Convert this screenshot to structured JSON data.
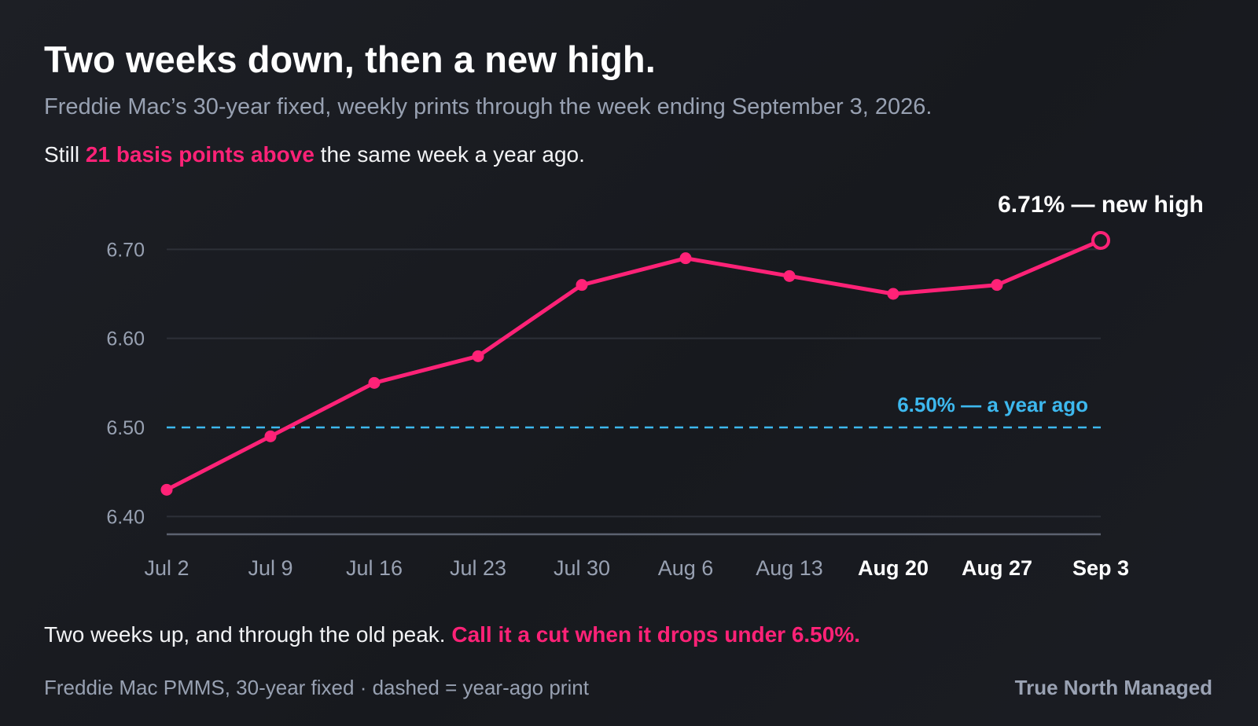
{
  "header": {
    "title": "Two weeks down, then a new high.",
    "subtitle": "Freddie Mac’s 30-year fixed, weekly prints through the week ending September 3, 2026.",
    "lede_prefix": "Still ",
    "lede_highlight": "21 basis points above",
    "lede_suffix": " the same week a year ago."
  },
  "footer": {
    "takeaway_prefix": "Two weeks up, and through the old peak. ",
    "takeaway_highlight": "Call it a cut when it drops under 6.50%.",
    "source": "Freddie Mac PMMS, 30-year fixed · dashed = year-ago print",
    "brand": "True North Managed"
  },
  "colors": {
    "series": "#ff2277",
    "reference": "#3db8ee",
    "grid": "#2d3038",
    "baseline": "#5c6270",
    "tick": "#98a1b2",
    "tick_bold": "#ffffff"
  },
  "chart_data": {
    "type": "line",
    "x": [
      "Jul 2",
      "Jul 9",
      "Jul 16",
      "Jul 23",
      "Jul 30",
      "Aug 6",
      "Aug 13",
      "Aug 20",
      "Aug 27",
      "Sep 3"
    ],
    "bold_ticks": [
      "Aug 20",
      "Aug 27",
      "Sep 3"
    ],
    "series": [
      {
        "values": [
          6.43,
          6.49,
          6.55,
          6.58,
          6.66,
          6.69,
          6.67,
          6.65,
          6.66,
          6.71
        ]
      }
    ],
    "yticks": [
      "6.40",
      "6.50",
      "6.60",
      "6.70"
    ],
    "ylim": [
      6.38,
      6.71
    ],
    "grid": true,
    "reference_line": {
      "value": 6.5,
      "label": "6.50% — a year ago"
    },
    "end_annotation": "6.71% — new high"
  }
}
